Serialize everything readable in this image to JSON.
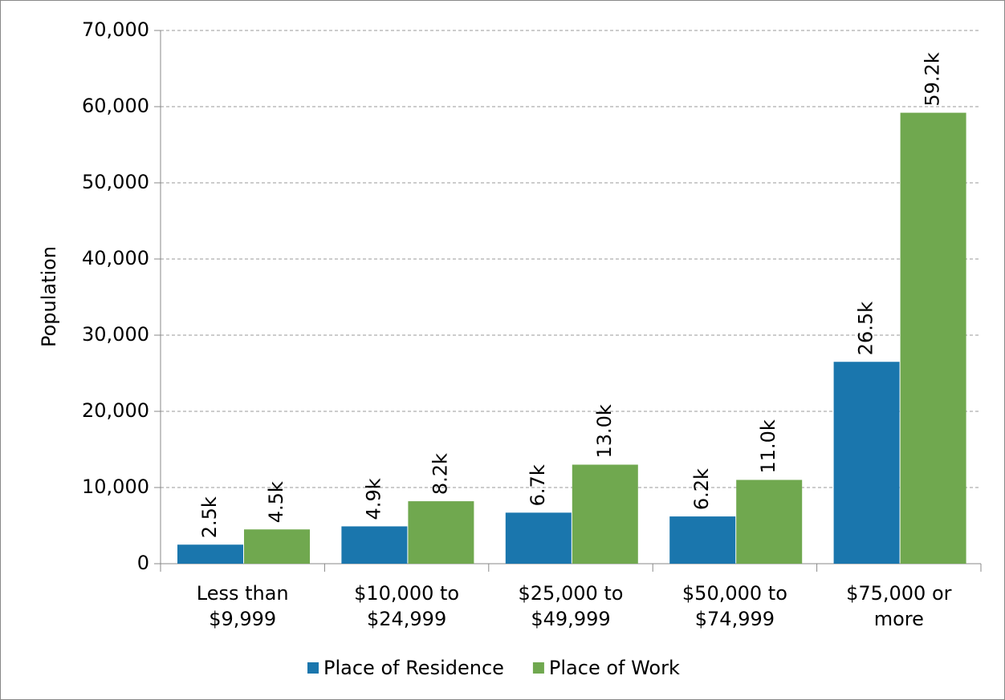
{
  "chart_data": {
    "type": "bar",
    "y_label": "Population",
    "categories": [
      "Less than\n$9,999",
      "$10,000 to\n$24,999",
      "$25,000 to\n$49,999",
      "$50,000 to\n$74,999",
      "$75,000 or\nmore"
    ],
    "series": [
      {
        "name": "Place of Residence",
        "color": "#1a76ad",
        "values": [
          2500,
          4900,
          6700,
          6200,
          26500
        ],
        "value_labels": [
          "2.5k",
          "4.9k",
          "6.7k",
          "6.2k",
          "26.5k"
        ]
      },
      {
        "name": "Place of Work",
        "color": "#70a84f",
        "values": [
          4500,
          8200,
          13000,
          11000,
          59200
        ],
        "value_labels": [
          "4.5k",
          "8.2k",
          "13.0k",
          "11.0k",
          "59.2k"
        ]
      }
    ],
    "ylim": [
      0,
      70000
    ],
    "yticks": [
      0,
      {
        "value": 10000,
        "label": "10,000"
      },
      {
        "value": 20000,
        "label": "20,000"
      },
      {
        "value": 30000,
        "label": "30,000"
      },
      {
        "value": 40000,
        "label": "40,000"
      },
      {
        "value": 50000,
        "label": "50,000"
      },
      {
        "value": 60000,
        "label": "60,000"
      },
      {
        "value": 70000,
        "label": "70,000"
      }
    ],
    "grid": true,
    "legend": "bottom"
  }
}
